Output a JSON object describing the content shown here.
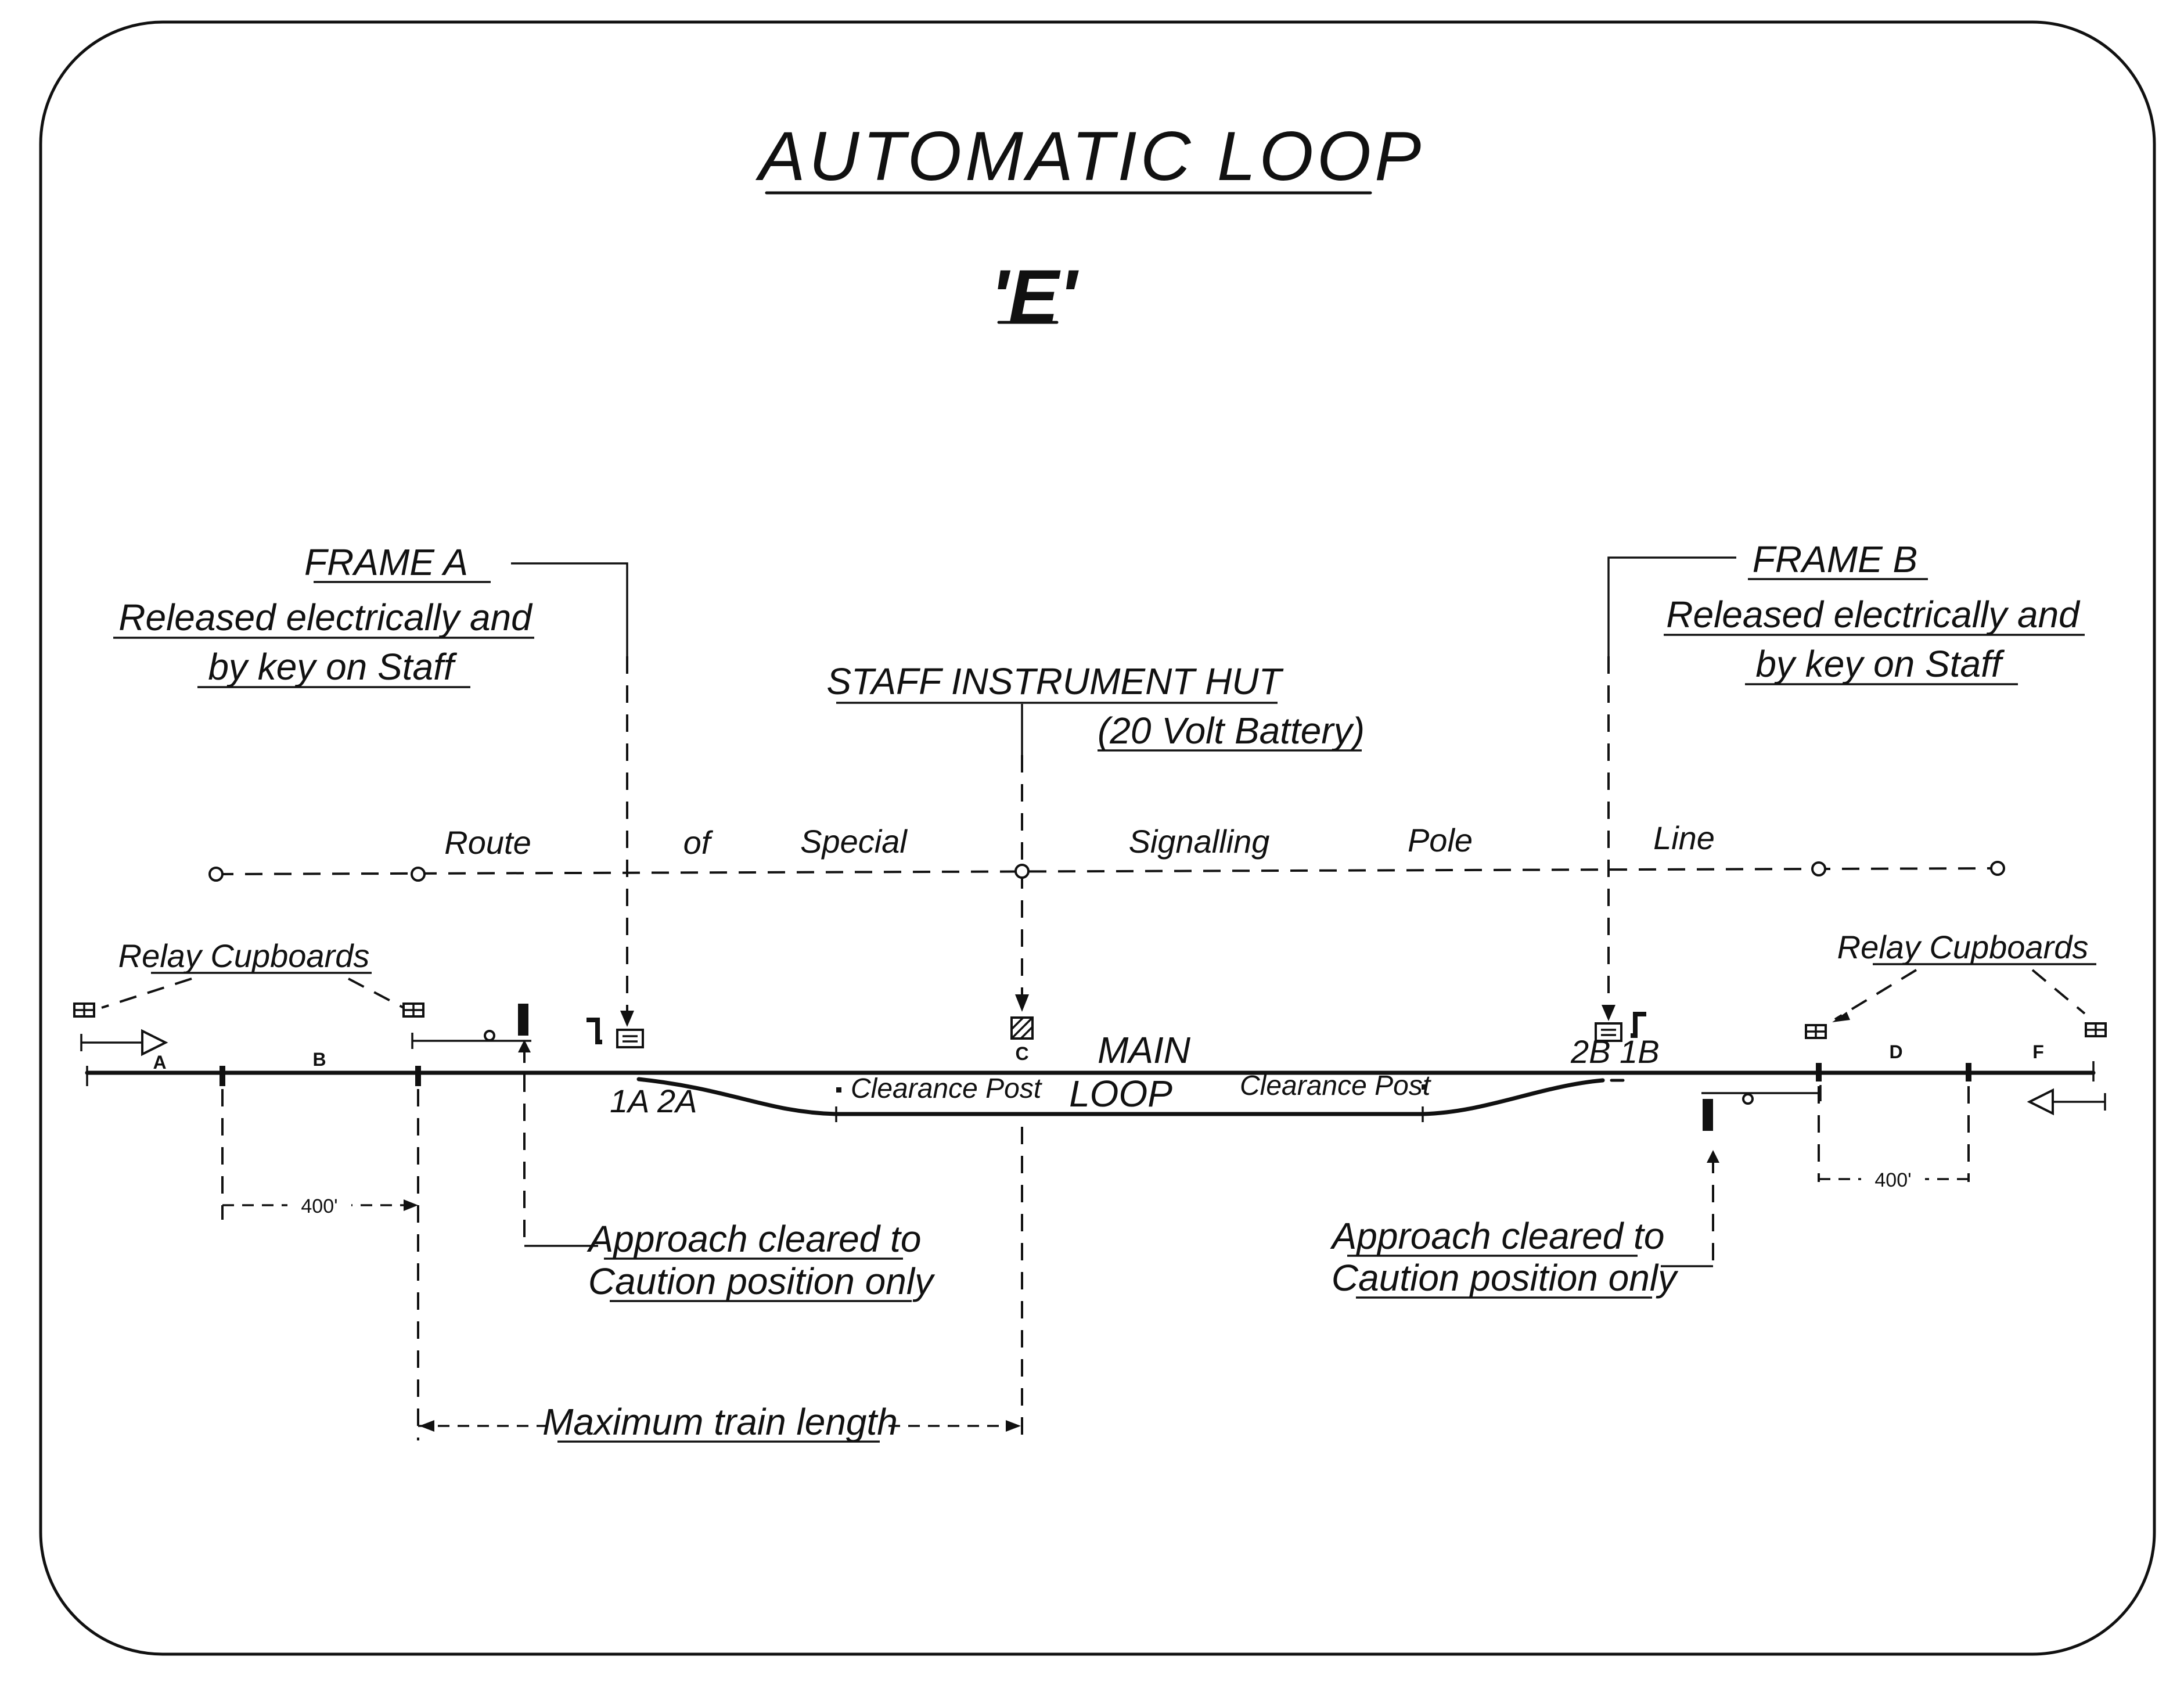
{
  "title": "AUTOMATIC LOOP",
  "subtitle": "'E'",
  "frame_a": {
    "heading": "FRAME A",
    "line1": "Released electrically and",
    "line2": "by key on Staff"
  },
  "frame_b": {
    "heading": "FRAME B",
    "line1": "Released electrically and",
    "line2": "by key on Staff"
  },
  "hut": {
    "heading": "STAFF INSTRUMENT HUT",
    "sub": "(20 Volt Battery)"
  },
  "pole_line": [
    "Route",
    "of",
    "Special",
    "Signalling",
    "Pole",
    "Line"
  ],
  "relay_left": "Relay Cupboards",
  "relay_right": "Relay Cupboards",
  "track": {
    "main": "MAIN",
    "loop": "LOOP",
    "clearance_left": "Clearance Post",
    "clearance_right": "Clearance Post",
    "points_left": "1A 2A",
    "points_right": "2B 1B",
    "hut_code": "C"
  },
  "sections": [
    "A",
    "B",
    "D",
    "F"
  ],
  "dim_left": "400'",
  "dim_right": "400'",
  "approach_left": {
    "line1": "Approach cleared to",
    "line2": "Caution position only"
  },
  "approach_right": {
    "line1": "Approach cleared to",
    "line2": "Caution position only"
  },
  "max_train": "Maximum train length"
}
